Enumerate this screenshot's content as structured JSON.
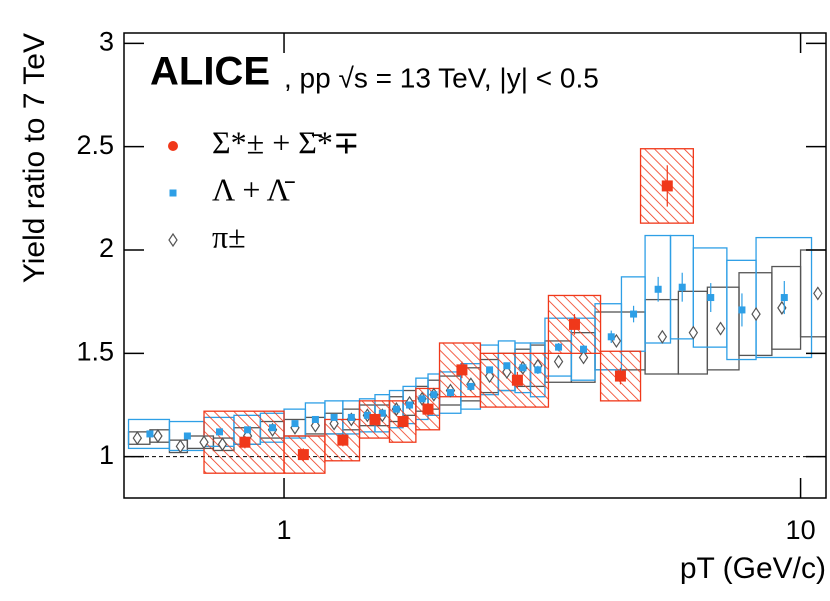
{
  "chart_data": {
    "type": "scatter",
    "title": "ALICE",
    "subtitle": ", pp √s = 13 TeV, |y| < 0.5",
    "x_label": "pT (GeV/c)",
    "y_label": "Yield ratio to 7 TeV",
    "log_x": true,
    "xlim": [
      0.49,
      11.2
    ],
    "ylim": [
      0.8,
      3.05
    ],
    "xticks": [
      1,
      10
    ],
    "yticks": [
      1,
      1.5,
      2,
      2.5,
      3
    ],
    "reference_line": 1,
    "series": [
      {
        "name": "π±",
        "color": "#555555",
        "x": [
          0.52,
          0.57,
          0.63,
          0.7,
          0.76,
          0.85,
          0.95,
          1.05,
          1.15,
          1.25,
          1.35,
          1.45,
          1.55,
          1.65,
          1.75,
          1.85,
          1.95,
          2.1,
          2.3,
          2.5,
          2.7,
          2.9,
          3.1,
          3.4,
          3.8,
          4.4,
          5.4,
          6.2,
          7.0,
          8.2,
          9.2,
          10.8
        ],
        "x_edges": [
          0.5,
          0.55,
          0.6,
          0.65,
          0.73,
          0.8,
          0.9,
          1.0,
          1.1,
          1.2,
          1.3,
          1.4,
          1.5,
          1.6,
          1.7,
          1.8,
          1.9,
          2.0,
          2.2,
          2.4,
          2.6,
          2.8,
          3.0,
          3.2,
          3.6,
          4.0,
          5.0,
          5.8,
          6.6,
          7.6,
          8.8,
          10.0,
          12.0
        ],
        "values": [
          1.09,
          1.1,
          1.05,
          1.07,
          1.06,
          1.1,
          1.13,
          1.14,
          1.15,
          1.16,
          1.18,
          1.2,
          1.2,
          1.23,
          1.26,
          1.28,
          1.3,
          1.32,
          1.35,
          1.39,
          1.41,
          1.43,
          1.44,
          1.46,
          1.48,
          1.56,
          1.58,
          1.6,
          1.62,
          1.69,
          1.72,
          1.79
        ],
        "errors": [
          0.02,
          0.02,
          0.02,
          0.02,
          0.02,
          0.02,
          0.02,
          0.02,
          0.02,
          0.02,
          0.02,
          0.02,
          0.02,
          0.02,
          0.02,
          0.02,
          0.02,
          0.02,
          0.02,
          0.02,
          0.02,
          0.02,
          0.02,
          0.02,
          0.02,
          0.02,
          0.02,
          0.02,
          0.03,
          0.03,
          0.03,
          0.03
        ],
        "syst": [
          0.03,
          0.03,
          0.03,
          0.03,
          0.03,
          0.04,
          0.04,
          0.04,
          0.04,
          0.05,
          0.05,
          0.05,
          0.05,
          0.06,
          0.06,
          0.06,
          0.07,
          0.07,
          0.08,
          0.08,
          0.09,
          0.09,
          0.1,
          0.1,
          0.12,
          0.14,
          0.18,
          0.2,
          0.2,
          0.2,
          0.2,
          0.21
        ]
      },
      {
        "name": "Λ + Λ̄",
        "color": "#2e9fe6",
        "x": [
          0.55,
          0.65,
          0.75,
          0.85,
          0.95,
          1.05,
          1.15,
          1.25,
          1.35,
          1.45,
          1.55,
          1.65,
          1.75,
          1.85,
          1.95,
          2.1,
          2.3,
          2.5,
          2.7,
          2.9,
          3.1,
          3.4,
          3.8,
          4.3,
          4.75,
          5.3,
          5.9,
          6.7,
          7.7,
          9.3
        ],
        "x_edges": [
          0.5,
          0.6,
          0.7,
          0.8,
          0.9,
          1.0,
          1.1,
          1.2,
          1.3,
          1.4,
          1.5,
          1.6,
          1.7,
          1.8,
          1.9,
          2.0,
          2.2,
          2.4,
          2.6,
          2.8,
          3.0,
          3.2,
          3.6,
          4.0,
          4.5,
          5.0,
          5.6,
          6.2,
          7.2,
          8.2,
          10.5
        ],
        "values": [
          1.11,
          1.1,
          1.12,
          1.13,
          1.14,
          1.16,
          1.18,
          1.19,
          1.19,
          1.2,
          1.21,
          1.23,
          1.25,
          1.28,
          1.3,
          1.31,
          1.34,
          1.42,
          1.44,
          1.43,
          1.42,
          1.53,
          1.52,
          1.58,
          1.69,
          1.81,
          1.82,
          1.77,
          1.71,
          1.77
        ],
        "errors": [
          0.01,
          0.01,
          0.01,
          0.01,
          0.01,
          0.01,
          0.01,
          0.01,
          0.01,
          0.01,
          0.01,
          0.01,
          0.01,
          0.01,
          0.01,
          0.01,
          0.01,
          0.01,
          0.01,
          0.01,
          0.02,
          0.02,
          0.02,
          0.03,
          0.04,
          0.06,
          0.07,
          0.07,
          0.08,
          0.08
        ],
        "syst": [
          0.07,
          0.07,
          0.07,
          0.07,
          0.07,
          0.07,
          0.08,
          0.08,
          0.08,
          0.08,
          0.09,
          0.09,
          0.09,
          0.1,
          0.1,
          0.1,
          0.11,
          0.12,
          0.12,
          0.12,
          0.13,
          0.14,
          0.15,
          0.16,
          0.18,
          0.26,
          0.25,
          0.24,
          0.24,
          0.29
        ]
      },
      {
        "name": "Σ*± + Σ̄*∓",
        "color": "#f0381a",
        "x": [
          0.84,
          1.09,
          1.3,
          1.5,
          1.7,
          1.9,
          2.21,
          2.83,
          3.65,
          4.48,
          5.52
        ],
        "x_edges": [
          0.7,
          1.0,
          1.2,
          1.4,
          1.6,
          1.8,
          2.0,
          2.4,
          3.25,
          4.1,
          4.9,
          6.2
        ],
        "values": [
          1.07,
          1.01,
          1.08,
          1.18,
          1.17,
          1.23,
          1.42,
          1.37,
          1.64,
          1.39,
          2.31
        ],
        "errors": [
          0.03,
          0.03,
          0.03,
          0.03,
          0.03,
          0.03,
          0.04,
          0.04,
          0.05,
          0.04,
          0.1
        ],
        "syst": [
          0.15,
          0.09,
          0.1,
          0.09,
          0.1,
          0.1,
          0.13,
          0.13,
          0.14,
          0.12,
          0.18
        ]
      }
    ]
  }
}
